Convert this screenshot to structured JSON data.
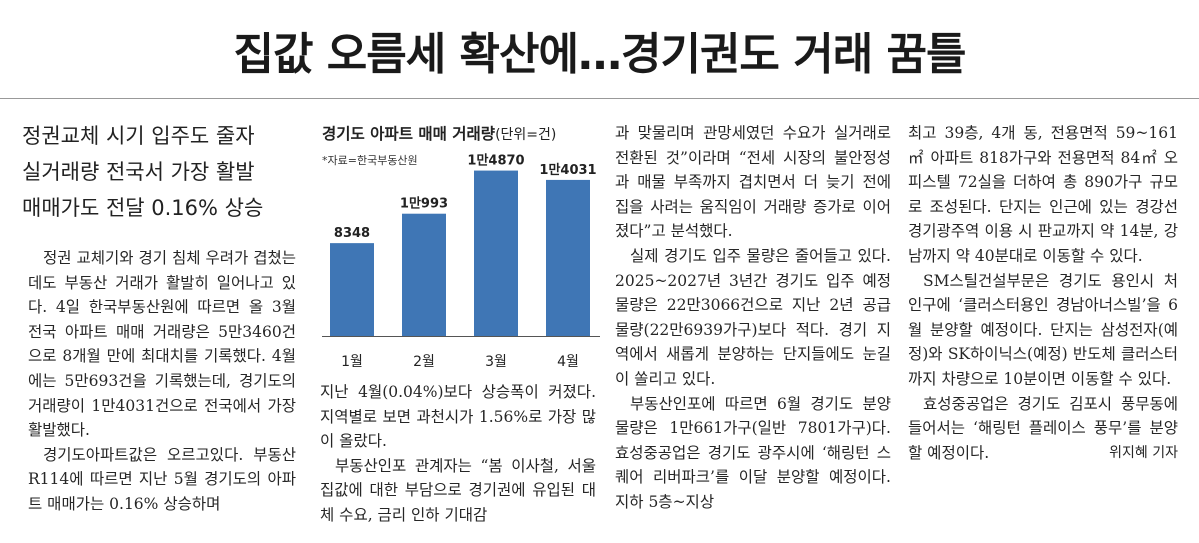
{
  "headline": "집값 오름세 확산에…경기권도 거래 꿈틀",
  "subhead": [
    "정권교체 시기 입주도 줄자",
    "실거래량 전국서 가장 활발",
    "매매가도 전달 0.16% 상승"
  ],
  "columns": {
    "c1": [
      "정권 교체기와 경기 침체 우려가 겹쳤는데도 부동산 거래가 활발히 일어나고 있다. 4일 한국부동산원에 따르면 올 3월 전국 아파트 매매 거래량은 5만3460건으로 8개월 만에 최대치를 기록했다. 4월에는 5만693건을 기록했는데, 경기도의 거래량이 1만4031건으로 전국에서 가장 활발했다.",
      "경기도아파트값은 오르고있다. 부동산R114에 따르면 지난 5월 경기도의 아파트 매매가는 0.16% 상승하며"
    ],
    "c2": [
      "지난 4월(0.04%)보다 상승폭이 커졌다. 지역별로 보면 과천시가 1.56%로 가장 많이 올랐다.",
      "부동산인포 관계자는 “봄 이사철, 서울 집값에 대한 부담으로 경기권에 유입된 대체 수요, 금리 인하 기대감"
    ],
    "c3": [
      "과 맞물리며 관망세였던 수요가 실거래로 전환된 것”이라며 “전세 시장의 불안정성과 매물 부족까지 겹치면서 더 늦기 전에 집을 사려는 움직임이 거래량 증가로 이어졌다”고 분석했다.",
      "실제 경기도 입주 물량은 줄어들고 있다. 2025~2027년 3년간 경기도 입주 예정 물량은 22만3066건으로 지난 2년 공급 물량(22만6939가구)보다 적다. 경기 지역에서 새롭게 분양하는 단지들에도 눈길이 쏠리고 있다.",
      "부동산인포에 따르면 6월 경기도 분양 물량은 1만661가구(일반 7801가구)다. 효성중공업은 경기도 광주시에 ‘해링턴 스퀘어 리버파크’를 이달 분양할 예정이다. 지하 5층~지상"
    ],
    "c4": [
      "최고 39층, 4개 동, 전용면적 59~161㎡ 아파트 818가구와 전용면적 84㎡ 오피스텔 72실을 더하여 총 890가구 규모로 조성된다. 단지는 인근에 있는 경강선 경기광주역 이용 시 판교까지 약 14분, 강남까지 약 40분대로 이동할 수 있다.",
      "SM스틸건설부문은 경기도 용인시 처인구에 ‘클러스터용인 경남아너스빌’을 6월 분양할 예정이다. 단지는 삼성전자(예정)와 SK하이닉스(예정) 반도체 클러스터까지 차량으로 10분이면 이동할 수 있다.",
      "효성중공업은 경기도 김포시 풍무동에 들어서는 ‘해링턴 플레이스 풍무’를 분양할 예정이다."
    ],
    "byline": "위지혜 기자"
  },
  "chart_data": {
    "type": "bar",
    "title": "경기도 아파트 매매 거래량",
    "unit": "(단위=건)",
    "source": "*자료=한국부동산원",
    "categories": [
      "1월",
      "2월",
      "3월",
      "4월"
    ],
    "values": [
      8348,
      10993,
      14870,
      14031
    ],
    "value_labels": [
      "8348",
      "1만993",
      "1만4870",
      "1만4031"
    ],
    "ylim": [
      0,
      16000
    ],
    "bar_color": "#3f76b5"
  }
}
